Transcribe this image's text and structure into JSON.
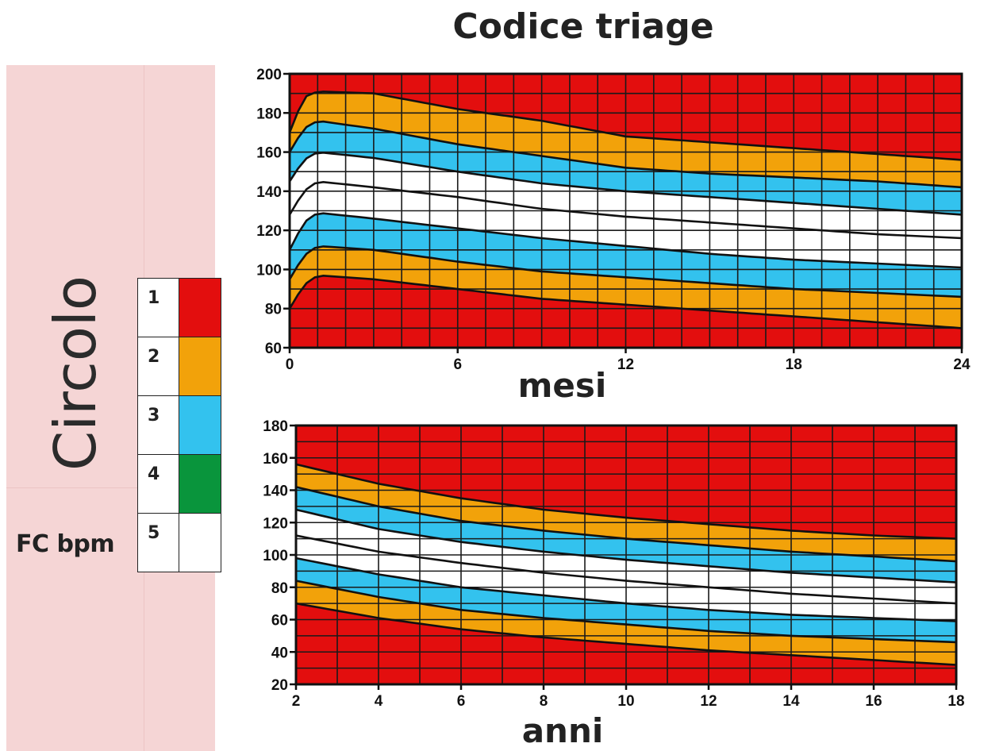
{
  "title": "Codice triage",
  "section_title": "Circolo",
  "metric_label": "FC bpm",
  "legend": [
    {
      "code": "1",
      "color": "#e30e0e"
    },
    {
      "code": "2",
      "color": "#f2a20a"
    },
    {
      "code": "3",
      "color": "#33c2ee"
    },
    {
      "code": "4",
      "color": "#09953c"
    },
    {
      "code": "5",
      "color": "#ffffff"
    }
  ],
  "chart_data": [
    {
      "type": "area",
      "xlabel": "mesi",
      "ylabel": "",
      "xlim": [
        0,
        24
      ],
      "ylim": [
        60,
        200
      ],
      "xticks": [
        0,
        6,
        12,
        18,
        24
      ],
      "yticks": [
        60,
        80,
        100,
        120,
        140,
        160,
        180,
        200
      ],
      "background_color": "#e30e0e",
      "grid": true,
      "boundaries": [
        {
          "name": "b1",
          "x": [
            0,
            0.5,
            1,
            3,
            6,
            9,
            12,
            15,
            18,
            21,
            24
          ],
          "y": [
            170,
            188,
            191,
            190,
            182,
            176,
            168,
            165,
            162,
            159,
            156
          ]
        },
        {
          "name": "b2",
          "x": [
            0,
            0.5,
            1,
            3,
            6,
            9,
            12,
            15,
            18,
            21,
            24
          ],
          "y": [
            160,
            172,
            176,
            172,
            164,
            158,
            152,
            149,
            147,
            145,
            142
          ]
        },
        {
          "name": "b3",
          "x": [
            0,
            0.5,
            1,
            3,
            6,
            9,
            12,
            15,
            18,
            21,
            24
          ],
          "y": [
            145,
            156,
            160,
            157,
            150,
            144,
            140,
            137,
            134,
            131,
            128
          ]
        },
        {
          "name": "b4",
          "x": [
            0,
            0.5,
            1,
            3,
            6,
            9,
            12,
            15,
            18,
            21,
            24
          ],
          "y": [
            128,
            140,
            145,
            142,
            137,
            131,
            127,
            124,
            121,
            118,
            116
          ]
        },
        {
          "name": "b5",
          "x": [
            0,
            0.5,
            1,
            3,
            6,
            9,
            12,
            15,
            18,
            21,
            24
          ],
          "y": [
            110,
            124,
            129,
            126,
            121,
            116,
            112,
            108,
            105,
            103,
            101
          ]
        },
        {
          "name": "b6",
          "x": [
            0,
            0.5,
            1,
            3,
            6,
            9,
            12,
            15,
            18,
            21,
            24
          ],
          "y": [
            95,
            107,
            112,
            110,
            104,
            99,
            96,
            93,
            90,
            88,
            86
          ]
        },
        {
          "name": "b7",
          "x": [
            0,
            0.5,
            1,
            3,
            6,
            9,
            12,
            15,
            18,
            21,
            24
          ],
          "y": [
            80,
            92,
            97,
            95,
            90,
            85,
            82,
            79,
            76,
            73,
            70
          ]
        }
      ],
      "bands": [
        {
          "from": "b1",
          "to": "b2",
          "code": "2"
        },
        {
          "from": "b2",
          "to": "b3",
          "code": "3"
        },
        {
          "from": "b3",
          "to": "b5",
          "code": "5"
        },
        {
          "from": "b5",
          "to": "b6",
          "code": "3"
        },
        {
          "from": "b6",
          "to": "b7",
          "code": "2"
        }
      ]
    },
    {
      "type": "area",
      "xlabel": "anni",
      "ylabel": "",
      "xlim": [
        2,
        18
      ],
      "ylim": [
        20,
        180
      ],
      "xticks": [
        2,
        4,
        6,
        8,
        10,
        12,
        14,
        16,
        18
      ],
      "yticks": [
        20,
        40,
        60,
        80,
        100,
        120,
        140,
        160,
        180
      ],
      "background_color": "#e30e0e",
      "grid": true,
      "boundaries": [
        {
          "name": "b1",
          "x": [
            2,
            4,
            6,
            8,
            10,
            12,
            14,
            16,
            18
          ],
          "y": [
            156,
            144,
            135,
            128,
            123,
            119,
            115,
            112,
            110
          ]
        },
        {
          "name": "b2",
          "x": [
            2,
            4,
            6,
            8,
            10,
            12,
            14,
            16,
            18
          ],
          "y": [
            142,
            130,
            121,
            115,
            110,
            106,
            102,
            99,
            96
          ]
        },
        {
          "name": "b3",
          "x": [
            2,
            4,
            6,
            8,
            10,
            12,
            14,
            16,
            18
          ],
          "y": [
            128,
            116,
            108,
            102,
            97,
            93,
            89,
            86,
            83
          ]
        },
        {
          "name": "b4",
          "x": [
            2,
            4,
            6,
            8,
            10,
            12,
            14,
            16,
            18
          ],
          "y": [
            112,
            102,
            95,
            89,
            84,
            80,
            76,
            73,
            70
          ]
        },
        {
          "name": "b5",
          "x": [
            2,
            4,
            6,
            8,
            10,
            12,
            14,
            16,
            18
          ],
          "y": [
            98,
            88,
            80,
            75,
            70,
            66,
            63,
            61,
            59
          ]
        },
        {
          "name": "b6",
          "x": [
            2,
            4,
            6,
            8,
            10,
            12,
            14,
            16,
            18
          ],
          "y": [
            84,
            74,
            66,
            61,
            57,
            53,
            50,
            48,
            46
          ]
        },
        {
          "name": "b7",
          "x": [
            2,
            4,
            6,
            8,
            10,
            12,
            14,
            16,
            18
          ],
          "y": [
            70,
            61,
            54,
            49,
            45,
            41,
            38,
            35,
            32
          ]
        }
      ],
      "bands": [
        {
          "from": "b1",
          "to": "b2",
          "code": "2"
        },
        {
          "from": "b2",
          "to": "b3",
          "code": "3"
        },
        {
          "from": "b3",
          "to": "b5",
          "code": "5"
        },
        {
          "from": "b5",
          "to": "b6",
          "code": "3"
        },
        {
          "from": "b6",
          "to": "b7",
          "code": "2"
        }
      ]
    }
  ]
}
